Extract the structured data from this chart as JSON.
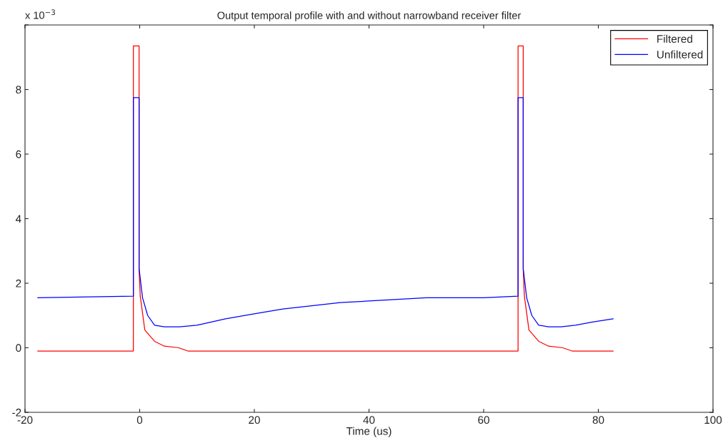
{
  "chart_data": {
    "type": "line",
    "title": "Output temporal profile with and without narrowband receiver filter",
    "xlabel": "Time (us)",
    "annotations": [
      "x 10$^{−3}$"
    ],
    "series": [
      {
        "name": "Filtered",
        "color": "#ff0000",
        "x": [
          -17.8,
          -1.1,
          -1.1,
          -0.1,
          -0.1,
          0.1,
          0.9,
          2.6,
          4.3,
          6.8,
          8.4,
          15,
          66.0,
          66.0,
          66.9,
          66.9,
          67.1,
          67.9,
          69.6,
          71.3,
          73.8,
          75.4,
          82.6
        ],
        "values": [
          -0.1,
          -0.1,
          9.35,
          9.35,
          2.4,
          1.6,
          0.55,
          0.2,
          0.05,
          0,
          -0.1,
          -0.1,
          -0.1,
          9.35,
          9.35,
          2.4,
          1.6,
          0.55,
          0.2,
          0.05,
          0,
          -0.1,
          -0.1
        ]
      },
      {
        "name": "Unfiltered",
        "color": "#0000ff",
        "x": [
          -17.8,
          -1.1,
          -1.1,
          -0.1,
          -0.1,
          0.5,
          1.4,
          2.6,
          4.3,
          7,
          10,
          15,
          20,
          25,
          30,
          35,
          40,
          45,
          50,
          55,
          60,
          66.0,
          66.0,
          66.9,
          66.9,
          67.5,
          68.4,
          69.6,
          71.3,
          73.5,
          76,
          79,
          82.6
        ],
        "values": [
          1.55,
          1.6,
          7.75,
          7.75,
          2.45,
          1.55,
          1,
          0.7,
          0.65,
          0.65,
          0.7,
          0.9,
          1.05,
          1.2,
          1.3,
          1.4,
          1.45,
          1.5,
          1.55,
          1.55,
          1.55,
          1.6,
          7.75,
          7.75,
          2.45,
          1.55,
          1,
          0.7,
          0.65,
          0.65,
          0.7,
          0.8,
          0.9
        ]
      }
    ],
    "xlim": [
      -20,
      100
    ],
    "xticks": [
      -20,
      0,
      20,
      40,
      60,
      80,
      100
    ],
    "ylim": [
      -2,
      10
    ],
    "yticks": [
      -2,
      0,
      2,
      4,
      6,
      8,
      {
        "value": 10,
        "label": null
      }
    ],
    "grid": false,
    "legend": "top right",
    "marker": "none",
    "line_style": "solid"
  }
}
